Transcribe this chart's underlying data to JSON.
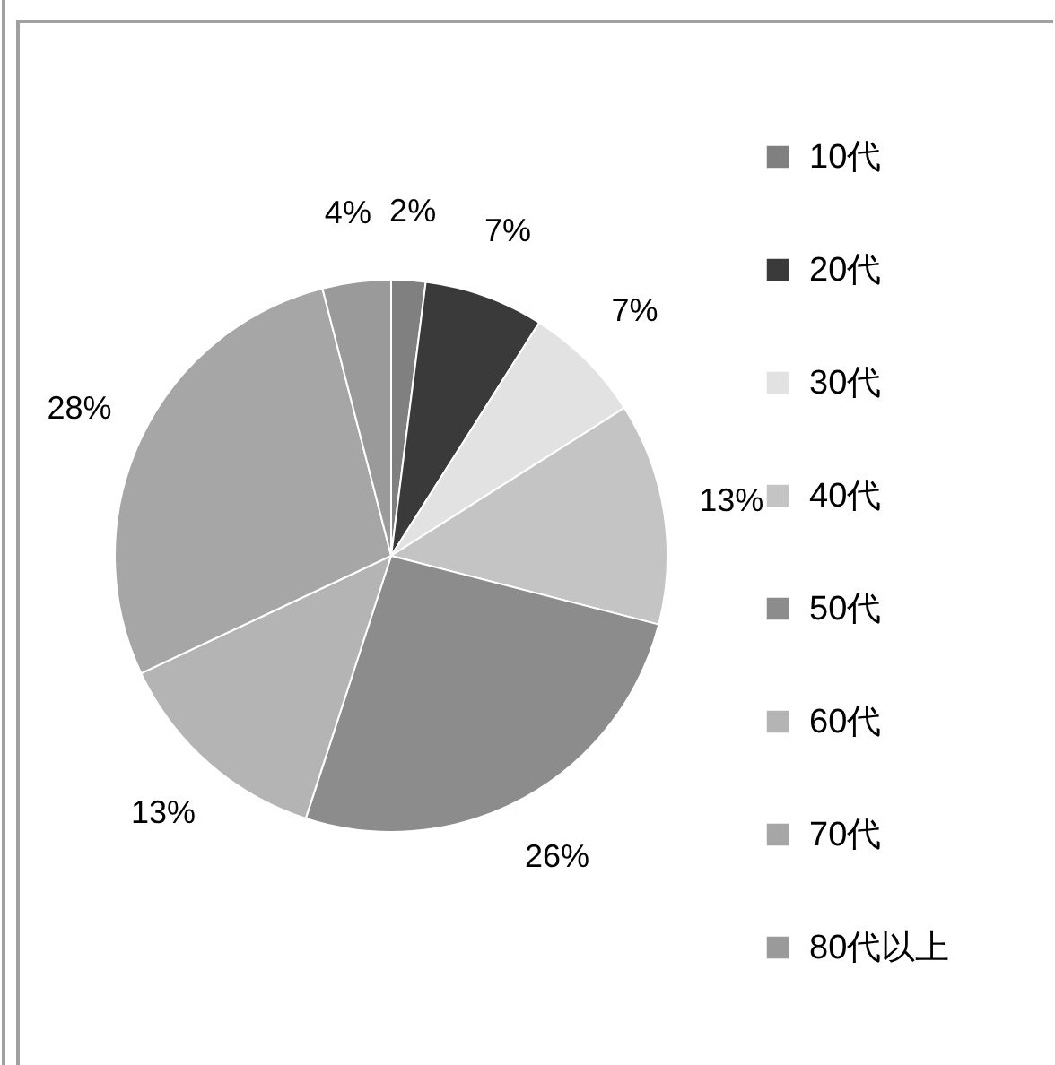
{
  "chart_data": {
    "type": "pie",
    "categories": [
      "10代",
      "20代",
      "30代",
      "40代",
      "50代",
      "60代",
      "70代",
      "80代以上"
    ],
    "values": [
      2,
      7,
      7,
      13,
      26,
      13,
      28,
      4
    ],
    "colors": [
      "#808080",
      "#3a3a3a",
      "#e2e2e2",
      "#c4c4c4",
      "#8c8c8c",
      "#b4b4b4",
      "#a6a6a6",
      "#9a9a9a"
    ],
    "value_labels": [
      "2%",
      "7%",
      "7%",
      "13%",
      "26%",
      "13%",
      "28%",
      "4%"
    ],
    "legend": "right"
  }
}
